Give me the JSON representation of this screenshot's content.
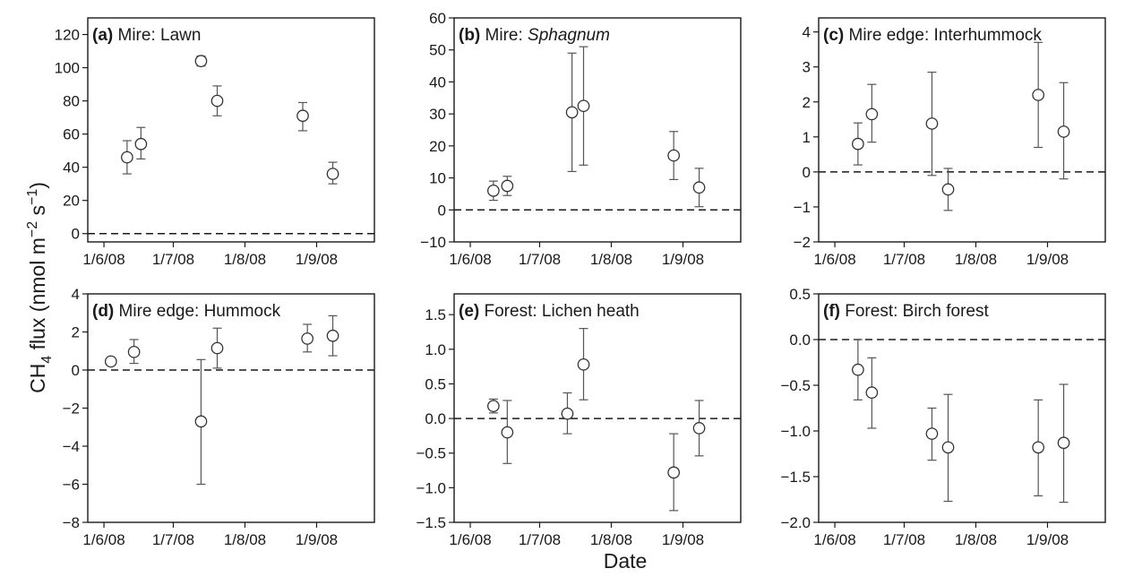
{
  "figure": {
    "ylabel_main": "CH",
    "ylabel_sub": "4",
    "ylabel_rest": " flux (nmol m",
    "ylabel_sup1": "−2",
    "ylabel_mid": " s",
    "ylabel_sup2": "−1",
    "ylabel_end": ")",
    "xlabel": "Date"
  },
  "chart_data": [
    {
      "type": "scatter",
      "panel_letter": "(a)",
      "title": "Mire: Lawn",
      "title_italic": false,
      "x_ticks": [
        "1/6/08",
        "1/7/08",
        "1/8/08",
        "1/9/08"
      ],
      "xlim": [
        "2008-05-25",
        "2008-09-26"
      ],
      "ylim": [
        -5,
        130
      ],
      "y_ticks": [
        0,
        20,
        40,
        60,
        80,
        100,
        120
      ],
      "y_tick_labels": [
        "0",
        "20",
        "40",
        "60",
        "80",
        "100",
        "120"
      ],
      "reference_line": 0,
      "points": [
        {
          "date": "2008-06-11",
          "y": 46,
          "err_low": 36,
          "err_high": 56
        },
        {
          "date": "2008-06-17",
          "y": 54,
          "err_low": 45,
          "err_high": 64
        },
        {
          "date": "2008-07-13",
          "y": 104,
          "err_low": 101,
          "err_high": 107
        },
        {
          "date": "2008-07-20",
          "y": 80,
          "err_low": 71,
          "err_high": 89
        },
        {
          "date": "2008-08-26",
          "y": 71,
          "err_low": 62,
          "err_high": 79
        },
        {
          "date": "2008-09-08",
          "y": 36,
          "err_low": 30,
          "err_high": 43
        }
      ]
    },
    {
      "type": "scatter",
      "panel_letter": "(b)",
      "title": "Mire: ",
      "title_italic_part": "Sphagnum",
      "title_italic": true,
      "x_ticks": [
        "1/6/08",
        "1/7/08",
        "1/8/08",
        "1/9/08"
      ],
      "xlim": [
        "2008-05-25",
        "2008-09-26"
      ],
      "ylim": [
        -10,
        60
      ],
      "y_ticks": [
        -10,
        0,
        10,
        20,
        30,
        40,
        50,
        60
      ],
      "y_tick_labels": [
        "−10",
        "0",
        "10",
        "20",
        "30",
        "40",
        "50",
        "60"
      ],
      "reference_line": 0,
      "points": [
        {
          "date": "2008-06-11",
          "y": 6,
          "err_low": 3,
          "err_high": 9
        },
        {
          "date": "2008-06-17",
          "y": 7.5,
          "err_low": 4.5,
          "err_high": 10.5
        },
        {
          "date": "2008-07-15",
          "y": 30.5,
          "err_low": 12,
          "err_high": 49
        },
        {
          "date": "2008-07-20",
          "y": 32.5,
          "err_low": 14,
          "err_high": 51
        },
        {
          "date": "2008-08-28",
          "y": 17,
          "err_low": 9.5,
          "err_high": 24.5
        },
        {
          "date": "2008-09-08",
          "y": 7,
          "err_low": 1,
          "err_high": 13
        }
      ]
    },
    {
      "type": "scatter",
      "panel_letter": "(c)",
      "title": "Mire edge: Interhummock",
      "title_italic": false,
      "x_ticks": [
        "1/6/08",
        "1/7/08",
        "1/8/08",
        "1/9/08"
      ],
      "xlim": [
        "2008-05-25",
        "2008-09-26"
      ],
      "ylim": [
        -2,
        4.4
      ],
      "y_ticks": [
        -2,
        -1,
        0,
        1,
        2,
        3,
        4
      ],
      "y_tick_labels": [
        "−2",
        "−1",
        "0",
        "1",
        "2",
        "3",
        "4"
      ],
      "reference_line": 0,
      "points": [
        {
          "date": "2008-06-11",
          "y": 0.8,
          "err_low": 0.2,
          "err_high": 1.4
        },
        {
          "date": "2008-06-17",
          "y": 1.65,
          "err_low": 0.85,
          "err_high": 2.5
        },
        {
          "date": "2008-07-13",
          "y": 1.38,
          "err_low": -0.1,
          "err_high": 2.85
        },
        {
          "date": "2008-07-20",
          "y": -0.5,
          "err_low": -1.1,
          "err_high": 0.1
        },
        {
          "date": "2008-08-28",
          "y": 2.2,
          "err_low": 0.7,
          "err_high": 3.7
        },
        {
          "date": "2008-09-08",
          "y": 1.15,
          "err_low": -0.2,
          "err_high": 2.55
        }
      ]
    },
    {
      "type": "scatter",
      "panel_letter": "(d)",
      "title": "Mire edge: Hummock",
      "title_italic": false,
      "x_ticks": [
        "1/6/08",
        "1/7/08",
        "1/8/08",
        "1/9/08"
      ],
      "xlim": [
        "2008-05-25",
        "2008-09-26"
      ],
      "ylim": [
        -8,
        4
      ],
      "y_ticks": [
        -8,
        -6,
        -4,
        -2,
        0,
        2,
        4
      ],
      "y_tick_labels": [
        "−8",
        "−6",
        "−4",
        "−2",
        "0",
        "2",
        "4"
      ],
      "reference_line": 0,
      "points": [
        {
          "date": "2008-06-04",
          "y": 0.45,
          "err_low": 0.45,
          "err_high": 0.45
        },
        {
          "date": "2008-06-14",
          "y": 0.95,
          "err_low": 0.35,
          "err_high": 1.6
        },
        {
          "date": "2008-07-13",
          "y": -2.7,
          "err_low": -6,
          "err_high": 0.55
        },
        {
          "date": "2008-07-20",
          "y": 1.15,
          "err_low": 0.1,
          "err_high": 2.2
        },
        {
          "date": "2008-08-28",
          "y": 1.65,
          "err_low": 0.95,
          "err_high": 2.4
        },
        {
          "date": "2008-09-08",
          "y": 1.8,
          "err_low": 0.75,
          "err_high": 2.85
        }
      ]
    },
    {
      "type": "scatter",
      "panel_letter": "(e)",
      "title": "Forest: Lichen heath",
      "title_italic": false,
      "x_ticks": [
        "1/6/08",
        "1/7/08",
        "1/8/08",
        "1/9/08"
      ],
      "xlim": [
        "2008-05-25",
        "2008-09-26"
      ],
      "ylim": [
        -1.5,
        1.8
      ],
      "y_ticks": [
        -1.5,
        -1.0,
        -0.5,
        0.0,
        0.5,
        1.0,
        1.5
      ],
      "y_tick_labels": [
        "−1.5",
        "−1.0",
        "−0.5",
        "0.0",
        "0.5",
        "1.0",
        "1.5"
      ],
      "reference_line": 0,
      "points": [
        {
          "date": "2008-06-11",
          "y": 0.18,
          "err_low": 0.08,
          "err_high": 0.28
        },
        {
          "date": "2008-06-17",
          "y": -0.2,
          "err_low": -0.65,
          "err_high": 0.26
        },
        {
          "date": "2008-07-13",
          "y": 0.07,
          "err_low": -0.22,
          "err_high": 0.37
        },
        {
          "date": "2008-07-20",
          "y": 0.78,
          "err_low": 0.27,
          "err_high": 1.3
        },
        {
          "date": "2008-08-28",
          "y": -0.78,
          "err_low": -1.33,
          "err_high": -0.22
        },
        {
          "date": "2008-09-08",
          "y": -0.14,
          "err_low": -0.54,
          "err_high": 0.26
        }
      ]
    },
    {
      "type": "scatter",
      "panel_letter": "(f)",
      "title": "Forest: Birch forest",
      "title_italic": false,
      "x_ticks": [
        "1/6/08",
        "1/7/08",
        "1/8/08",
        "1/9/08"
      ],
      "xlim": [
        "2008-05-25",
        "2008-09-26"
      ],
      "ylim": [
        -2.0,
        0.5
      ],
      "y_ticks": [
        -2.0,
        -1.5,
        -1.0,
        -0.5,
        0.0,
        0.5
      ],
      "y_tick_labels": [
        "−2.0",
        "−1.5",
        "−1.0",
        "−0.5",
        "0.0",
        "0.5"
      ],
      "reference_line": 0,
      "points": [
        {
          "date": "2008-06-11",
          "y": -0.33,
          "err_low": -0.66,
          "err_high": 0.0
        },
        {
          "date": "2008-06-17",
          "y": -0.58,
          "err_low": -0.97,
          "err_high": -0.2
        },
        {
          "date": "2008-07-13",
          "y": -1.03,
          "err_low": -1.32,
          "err_high": -0.75
        },
        {
          "date": "2008-07-20",
          "y": -1.18,
          "err_low": -1.77,
          "err_high": -0.6
        },
        {
          "date": "2008-08-28",
          "y": -1.18,
          "err_low": -1.71,
          "err_high": -0.66
        },
        {
          "date": "2008-09-08",
          "y": -1.13,
          "err_low": -1.78,
          "err_high": -0.49
        }
      ]
    }
  ]
}
